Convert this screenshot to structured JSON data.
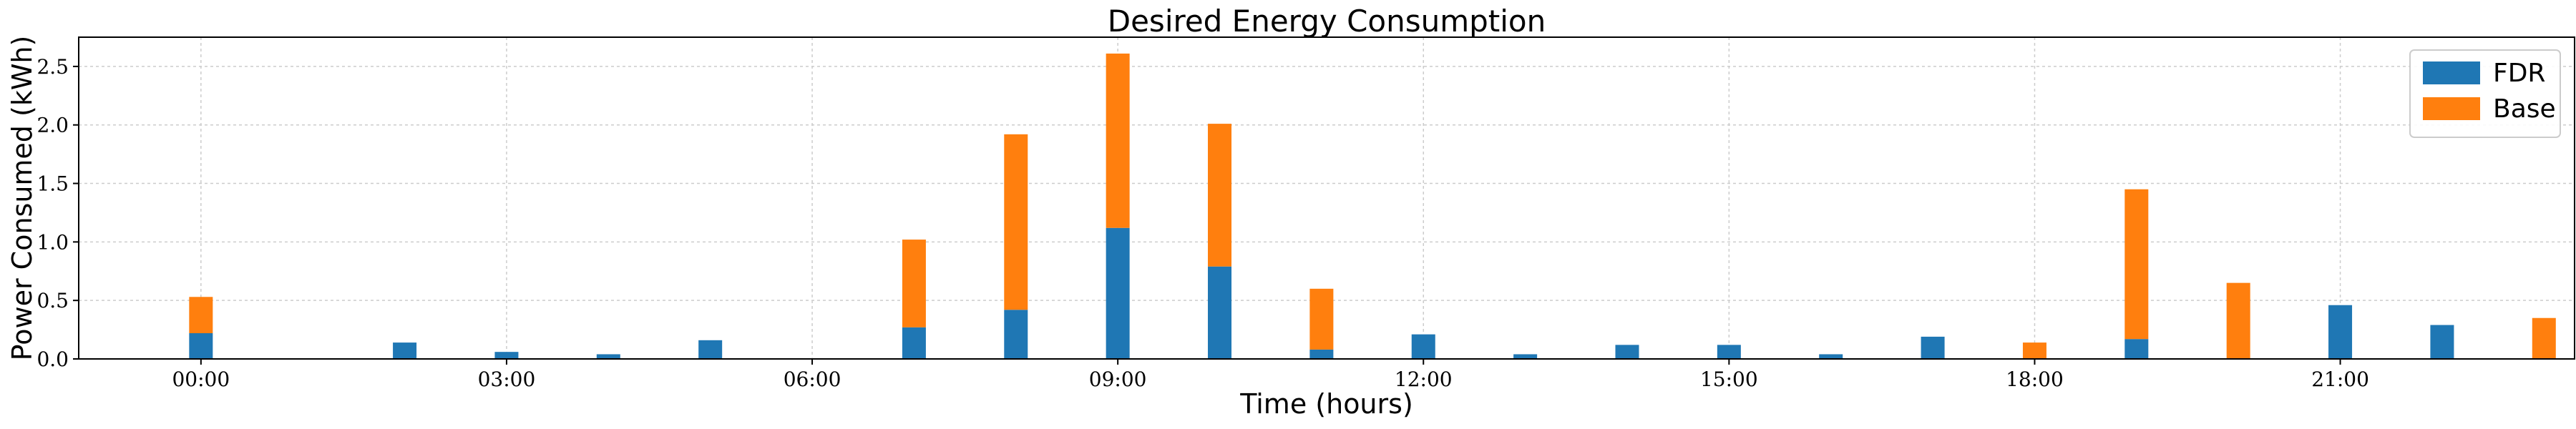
{
  "chart_data": {
    "type": "bar",
    "title": "Desired Energy Consumption",
    "xlabel": "Time (hours)",
    "ylabel": "Power Consumed (kWh)",
    "stacked": true,
    "grid": true,
    "legend_position": "top-right",
    "x_unit": "hours",
    "xlim": [
      -1.2,
      23.3
    ],
    "ylim": [
      0,
      2.75
    ],
    "x_ticks": [
      {
        "value": 0,
        "label": "00:00"
      },
      {
        "value": 3,
        "label": "03:00"
      },
      {
        "value": 6,
        "label": "06:00"
      },
      {
        "value": 9,
        "label": "09:00"
      },
      {
        "value": 12,
        "label": "12:00"
      },
      {
        "value": 15,
        "label": "15:00"
      },
      {
        "value": 18,
        "label": "18:00"
      },
      {
        "value": 21,
        "label": "21:00"
      },
      {
        "value": 24,
        "label": "00:00"
      }
    ],
    "y_ticks": [
      {
        "value": 0,
        "label": "0.0"
      },
      {
        "value": 0.5,
        "label": "0.5"
      },
      {
        "value": 1.0,
        "label": "1.0"
      },
      {
        "value": 1.5,
        "label": "1.5"
      },
      {
        "value": 2.0,
        "label": "2.0"
      },
      {
        "value": 2.5,
        "label": "2.5"
      }
    ],
    "x": [
      0,
      2,
      3,
      4,
      5,
      7,
      8,
      9,
      10,
      11,
      12,
      13,
      14,
      15,
      16,
      17,
      18,
      19,
      20,
      21,
      22,
      23
    ],
    "series": [
      {
        "name": "FDR",
        "color": "#1f77b4",
        "values": [
          0.22,
          0.14,
          0.06,
          0.04,
          0.16,
          0.27,
          0.42,
          1.12,
          0.79,
          0.08,
          0.21,
          0.04,
          0.12,
          0.12,
          0.04,
          0.19,
          0.0,
          0.17,
          0.0,
          0.46,
          0.29,
          0.0
        ]
      },
      {
        "name": "Base",
        "color": "#ff7f0e",
        "values": [
          0.31,
          0.0,
          0.0,
          0.0,
          0.0,
          0.75,
          1.5,
          1.49,
          1.22,
          0.52,
          0.0,
          0.0,
          0.0,
          0.0,
          0.0,
          0.0,
          0.14,
          1.28,
          0.65,
          0.0,
          0.0,
          0.35
        ]
      }
    ]
  }
}
